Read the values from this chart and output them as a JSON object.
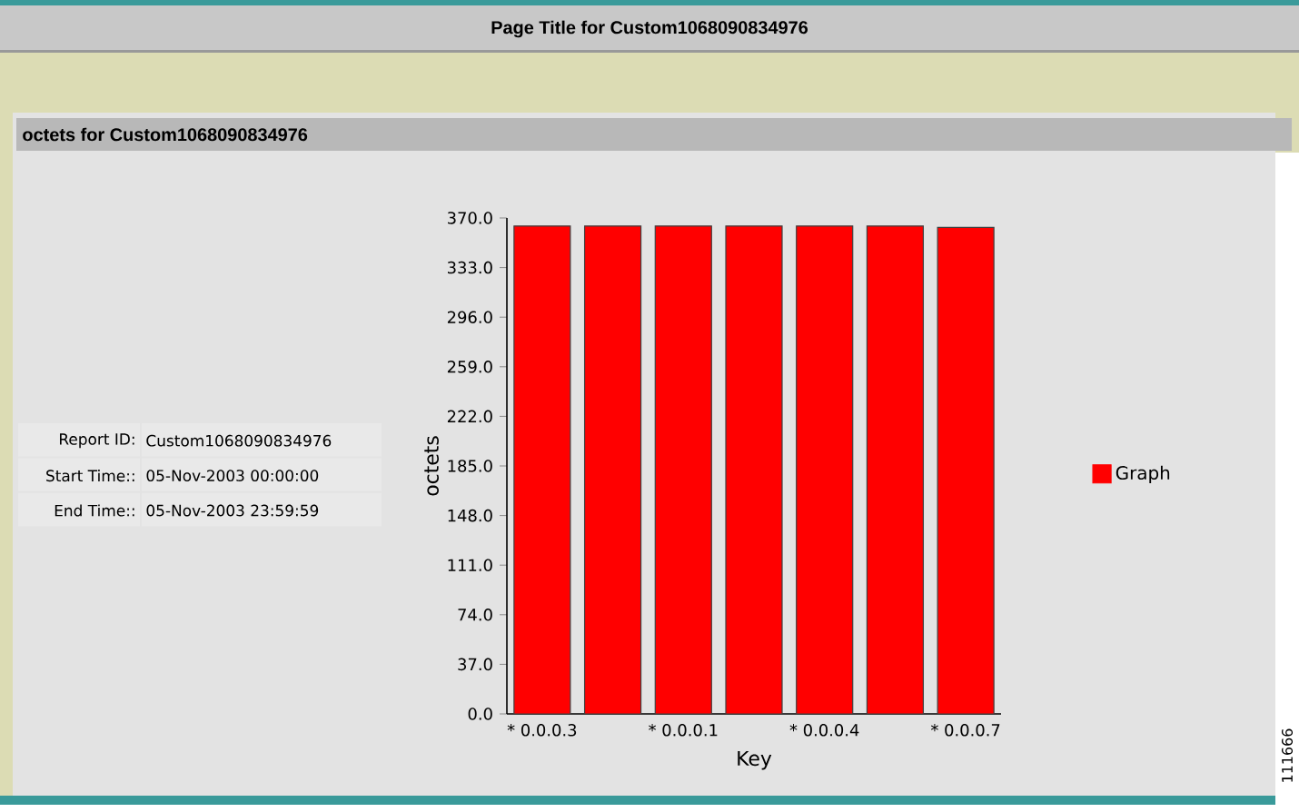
{
  "chart_data": {
    "type": "bar",
    "title": "Page Title for Custom1068090834976",
    "subtitle": "octets for Custom1068090834976",
    "xlabel": "Key",
    "ylabel": "octets",
    "categories": [
      "* 0.0.0.3",
      null,
      "* 0.0.0.1",
      null,
      "* 0.0.0.4",
      null,
      "* 0.0.0.7"
    ],
    "series": [
      {
        "name": "Graph",
        "color": "#ff0000",
        "values": [
          364,
          364,
          364,
          364,
          364,
          364,
          363
        ]
      }
    ],
    "ylim": [
      0,
      370
    ],
    "yticks": [
      {
        "value": 0,
        "label": "0.0"
      },
      {
        "value": 37,
        "label": "37.0"
      },
      {
        "value": 74,
        "label": "74.0"
      },
      {
        "value": 111,
        "label": "111.0"
      },
      {
        "value": 148,
        "label": "148.0"
      },
      {
        "value": 185,
        "label": "185.0"
      },
      {
        "value": 222,
        "label": "222.0"
      },
      {
        "value": 259,
        "label": "259.0"
      },
      {
        "value": 296,
        "label": "296.0"
      },
      {
        "value": 333,
        "label": "333.0"
      },
      {
        "value": 370,
        "label": "370.0"
      }
    ],
    "legend": "right",
    "annotations": [
      "Report ID:",
      "Custom1068090834976",
      "Start Time::",
      "05-Nov-2003 00:00:00",
      "End Time::",
      "05-Nov-2003 23:59:59",
      "111666"
    ]
  }
}
